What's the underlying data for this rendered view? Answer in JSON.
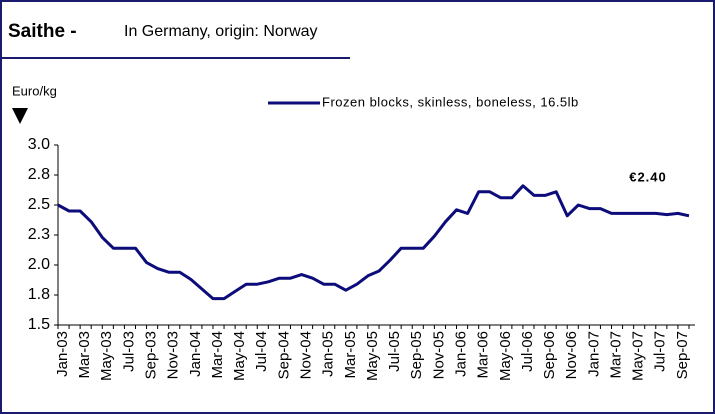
{
  "chart_data": {
    "type": "line",
    "title": "Saithe -",
    "subtitle": "In Germany, origin: Norway",
    "y_label": "Euro/kg",
    "annotation": "€2.40",
    "categories": [
      "Jan-03",
      null,
      "Mar-03",
      null,
      "May-03",
      null,
      "Jul-03",
      null,
      "Sep-03",
      null,
      "Nov-03",
      null,
      "Jan-04",
      null,
      "Mar-04",
      null,
      "May-04",
      null,
      "Jul-04",
      null,
      "Sep-04",
      null,
      "Nov-04",
      null,
      "Jan-05",
      null,
      "Mar-05",
      null,
      "May-05",
      null,
      "Jul-05",
      null,
      "Sep-05",
      null,
      "Nov-05",
      null,
      "Jan-06",
      null,
      "Mar-06",
      null,
      "May-06",
      null,
      "Jul-06",
      null,
      "Sep-06",
      null,
      "Nov-06",
      null,
      "Jan-07",
      null,
      "Mar-07",
      null,
      "May-07",
      null,
      "Jul-07",
      null,
      "Sep-07",
      null
    ],
    "series": [
      {
        "name": "Frozen blocks, skinless, boneless, 16.5lb",
        "color": "#0c0c7a",
        "values": [
          2.5,
          2.45,
          2.45,
          2.36,
          2.23,
          2.14,
          2.14,
          2.14,
          2.02,
          1.97,
          1.94,
          1.94,
          1.88,
          1.8,
          1.72,
          1.72,
          1.78,
          1.84,
          1.84,
          1.86,
          1.89,
          1.89,
          1.92,
          1.89,
          1.84,
          1.84,
          1.79,
          1.84,
          1.91,
          1.95,
          2.04,
          2.14,
          2.14,
          2.14,
          2.24,
          2.36,
          2.46,
          2.43,
          2.61,
          2.61,
          2.56,
          2.56,
          2.66,
          2.58,
          2.58,
          2.61,
          2.41,
          2.5,
          2.47,
          2.47,
          2.43,
          2.43,
          2.43,
          2.43,
          2.43,
          2.42,
          2.43,
          2.41
        ]
      }
    ],
    "ylim": [
      1.5,
      3.0
    ],
    "yticks": [
      1.5,
      {
        "value": 1.75,
        "label": "1.8"
      },
      {
        "value": 2.0,
        "label": "2.0"
      },
      {
        "value": 2.25,
        "label": "2.3"
      },
      2.5,
      {
        "value": 2.75,
        "label": "2.8"
      },
      {
        "value": 3.0,
        "label": "3.0"
      }
    ],
    "grid": false
  }
}
